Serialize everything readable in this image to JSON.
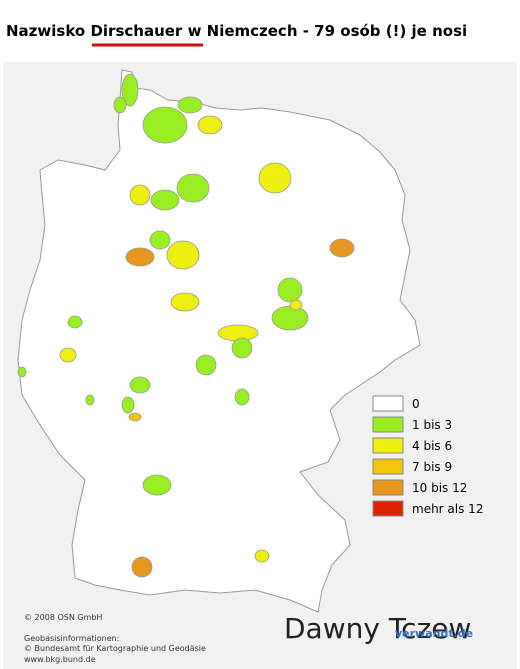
{
  "header": {
    "title_before": "Nazwisko",
    "title_surname": "Dirschauer",
    "title_after": "w Niemczech - 79 osób (!) je nosi"
  },
  "legend": {
    "items": [
      {
        "label": "0",
        "color": "#ffffff"
      },
      {
        "label": "1 bis 3",
        "color": "#99ee22"
      },
      {
        "label": "4 bis 6",
        "color": "#eeee11"
      },
      {
        "label": "7 bis 9",
        "color": "#f2c40e"
      },
      {
        "label": "10 bis 12",
        "color": "#e8961e"
      },
      {
        "label": "mehr als 12",
        "color": "#dd2200"
      }
    ]
  },
  "footer": {
    "copyright": "© 2008 OSN GmbH",
    "geo": "Geobasisinformationen:",
    "bkg": "© Bundesamt für Kartographie und Geodäsie",
    "url": "www.bkg.bund.de"
  },
  "watermark": "Dawny Tczew",
  "logo": "verwandt.de"
}
